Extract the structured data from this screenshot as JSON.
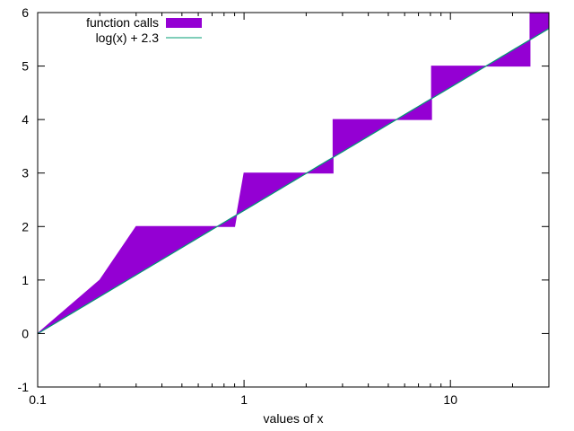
{
  "chart_data": {
    "type": "area",
    "title": "",
    "xlabel": "values of x",
    "ylabel": "",
    "xscale": "log",
    "xlim": [
      0.1,
      30
    ],
    "ylim": [
      -1,
      6
    ],
    "grid": false,
    "legend_position": "top-left",
    "x_ticks": [
      {
        "value": 0.1,
        "label": "0.1"
      },
      {
        "value": 1,
        "label": "1"
      },
      {
        "value": 10,
        "label": "10"
      }
    ],
    "y_ticks": [
      {
        "value": -1,
        "label": "-1"
      },
      {
        "value": 0,
        "label": "0"
      },
      {
        "value": 1,
        "label": "1"
      },
      {
        "value": 2,
        "label": "2"
      },
      {
        "value": 3,
        "label": "3"
      },
      {
        "value": 4,
        "label": "4"
      },
      {
        "value": 5,
        "label": "5"
      },
      {
        "value": 6,
        "label": "6"
      }
    ],
    "series": [
      {
        "name": "function calls",
        "style": "filled between step curve and log(x) + 2.3",
        "color": "#9400d3",
        "x": [
          0.1,
          0.2,
          0.3,
          0.9,
          1.0,
          2.7,
          2.7,
          8.1,
          8.1,
          24.3,
          24.3,
          30
        ],
        "y": [
          0,
          1,
          2,
          2,
          3,
          3,
          4,
          4,
          5,
          5,
          6,
          6
        ]
      },
      {
        "name": "log(x) + 2.3",
        "style": "line",
        "color": "#009e73",
        "function": "log(x) + 2.3"
      }
    ]
  }
}
